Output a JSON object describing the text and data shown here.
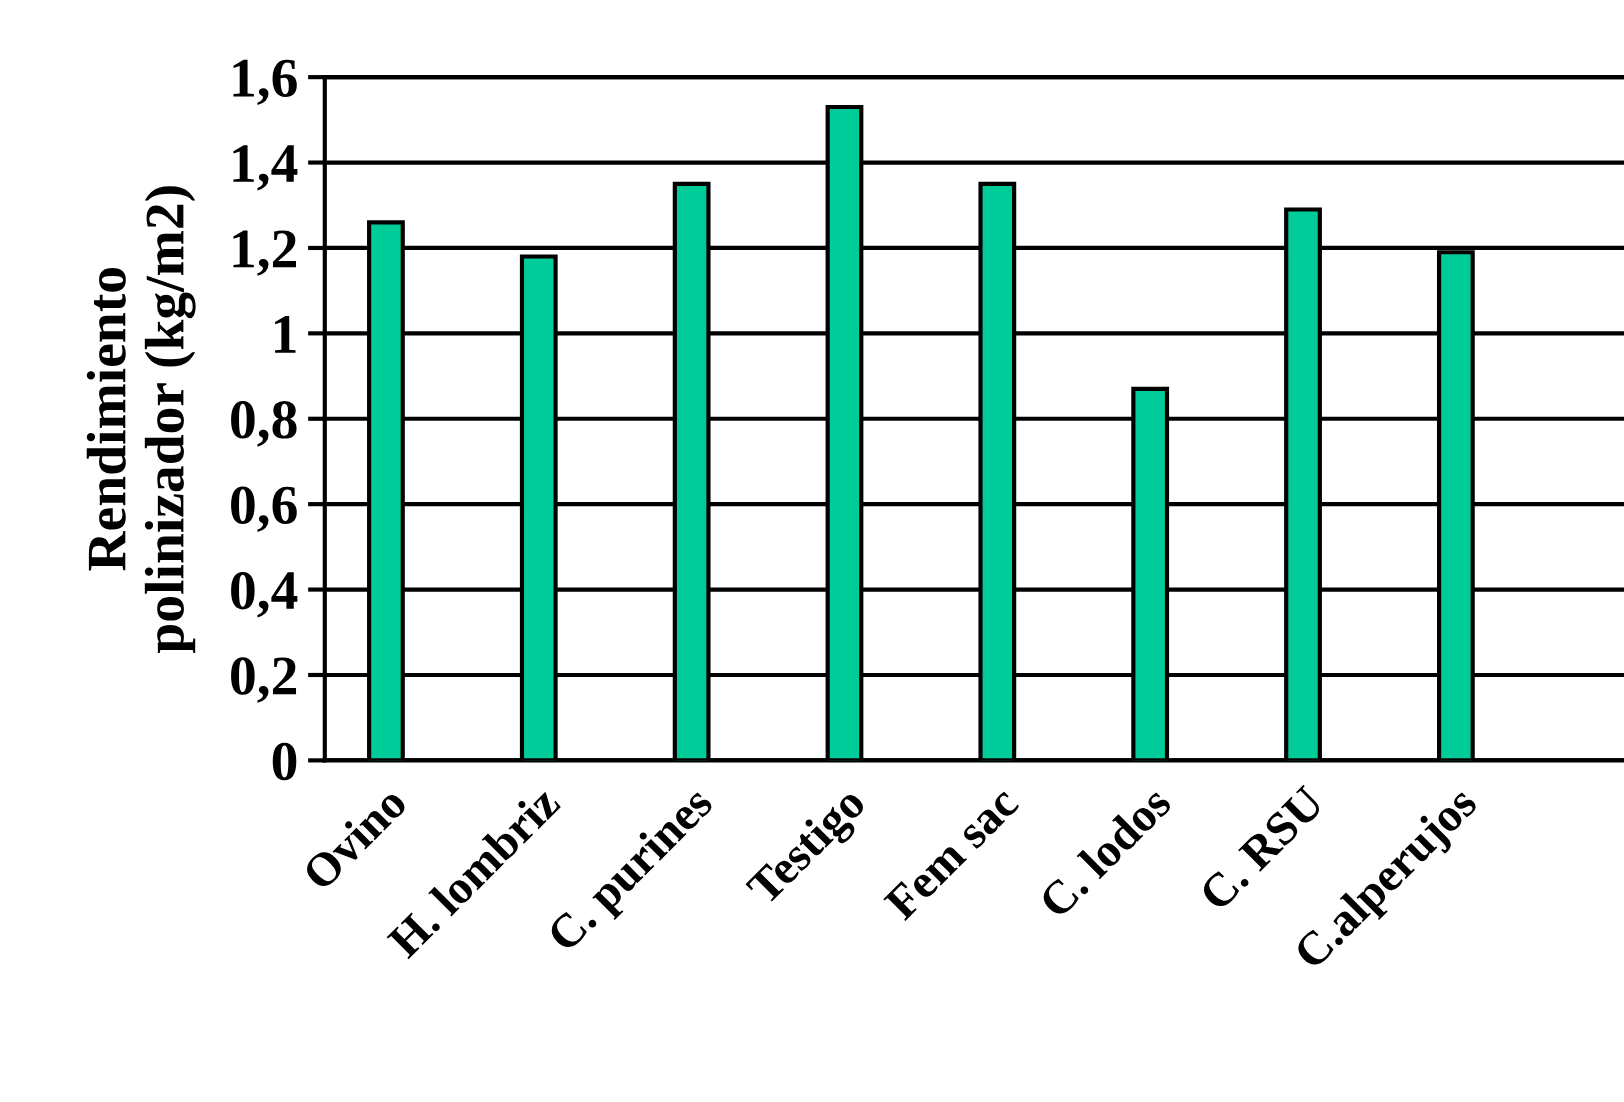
{
  "chart_data": {
    "type": "bar",
    "ylabel": "Rendimiento\npolinizador (kg/m2)",
    "categories": [
      "Ovino",
      "H. lombriz",
      "C. purines",
      "Testigo",
      "Fem sac",
      "C. lodos",
      "C. RSU",
      "C.alperujos"
    ],
    "values": [
      1.26,
      1.18,
      1.35,
      1.53,
      1.35,
      0.87,
      1.29,
      1.19
    ],
    "color": "#00cc99",
    "ylim": [
      0,
      1.6
    ],
    "yticks": [
      {
        "value": 0,
        "label": "0"
      },
      {
        "value": 0.2,
        "label": "0,2"
      },
      {
        "value": 0.4,
        "label": "0,4"
      },
      {
        "value": 0.6,
        "label": "0,6"
      },
      {
        "value": 0.8,
        "label": "0,8"
      },
      {
        "value": 1,
        "label": "1"
      },
      {
        "value": 1.2,
        "label": "1,2"
      },
      {
        "value": 1.4,
        "label": "1,4"
      },
      {
        "value": 1.6,
        "label": "1,6"
      }
    ],
    "grid": "y"
  }
}
